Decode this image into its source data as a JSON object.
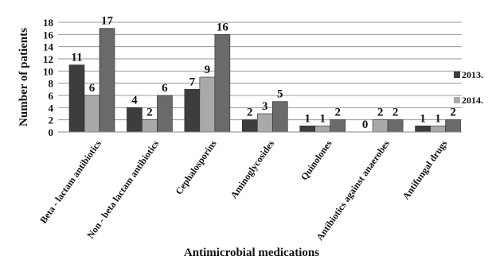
{
  "chart_data": {
    "type": "bar",
    "title": "",
    "xlabel": "Antimicrobial medications",
    "ylabel": "Number of patients",
    "ylim": [
      0,
      18
    ],
    "yticks": [
      0,
      2,
      4,
      6,
      8,
      10,
      12,
      14,
      16,
      18
    ],
    "grid": true,
    "legend_position": "right",
    "categories": [
      "Beta - lactam antibiotics",
      "Non - beta lactam antibiotics",
      "Cephalosporins",
      "Aminoglycosides",
      "Quinolones",
      "Antibiotics against anaerobes",
      "Antifungal drugs"
    ],
    "bar_values": [
      [
        11,
        6,
        17
      ],
      [
        4,
        2,
        6
      ],
      [
        7,
        9,
        16
      ],
      [
        2,
        3,
        5
      ],
      [
        1,
        1,
        2
      ],
      [
        0,
        2,
        2
      ],
      [
        1,
        1,
        2
      ]
    ],
    "bar_labels": [
      [
        "11",
        "6",
        "17"
      ],
      [
        "4",
        "2",
        "6"
      ],
      [
        "7",
        "9",
        "16"
      ],
      [
        "2",
        "3",
        "5"
      ],
      [
        "1",
        "1",
        "2"
      ],
      [
        "0",
        "2",
        "2"
      ],
      [
        "1",
        "1",
        "2"
      ]
    ],
    "bar_colors": [
      "#3d3d3d",
      "#a9a9a9",
      "#6a6a6a"
    ],
    "legend": [
      {
        "label": "2013.",
        "color": "#3d3d3d"
      },
      {
        "label": "2014.",
        "color": "#a9a9a9"
      }
    ]
  }
}
